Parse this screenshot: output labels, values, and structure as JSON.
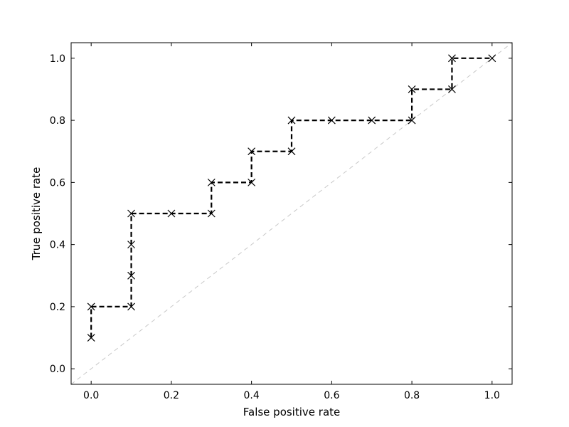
{
  "chart_data": {
    "type": "line",
    "title": "",
    "xlabel": "False positive rate",
    "ylabel": "True positive rate",
    "xlim": [
      -0.05,
      1.05
    ],
    "ylim": [
      -0.05,
      1.05
    ],
    "xticks": [
      0.0,
      0.2,
      0.4,
      0.6,
      0.8,
      1.0
    ],
    "yticks": [
      0.0,
      0.2,
      0.4,
      0.6,
      0.8,
      1.0
    ],
    "xtick_labels": [
      "0.0",
      "0.2",
      "0.4",
      "0.6",
      "0.8",
      "1.0"
    ],
    "ytick_labels": [
      "0.0",
      "0.2",
      "0.4",
      "0.6",
      "0.8",
      "1.0"
    ],
    "grid": false,
    "series": [
      {
        "style": "dashed",
        "marker": "x",
        "color": "#000000",
        "x": [
          0.0,
          0.0,
          0.1,
          0.1,
          0.1,
          0.1,
          0.2,
          0.3,
          0.3,
          0.4,
          0.4,
          0.5,
          0.5,
          0.6,
          0.7,
          0.8,
          0.8,
          0.9,
          0.9,
          1.0
        ],
        "y": [
          0.1,
          0.2,
          0.2,
          0.3,
          0.4,
          0.5,
          0.5,
          0.5,
          0.6,
          0.6,
          0.7,
          0.7,
          0.8,
          0.8,
          0.8,
          0.8,
          0.9,
          0.9,
          1.0,
          1.0
        ]
      }
    ],
    "reference_line": {
      "style": "dashed",
      "color": "#c8c8c8",
      "x": [
        -0.05,
        1.05
      ],
      "y": [
        -0.05,
        1.05
      ]
    }
  }
}
